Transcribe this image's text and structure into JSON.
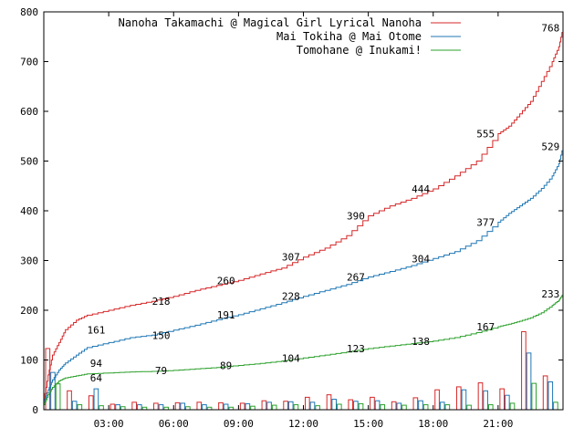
{
  "chart_data": {
    "type": "line",
    "title": "",
    "xlabel": "",
    "ylabel": "",
    "xlim": [
      0,
      24
    ],
    "ylim": [
      0,
      800
    ],
    "grid": false,
    "legend_position": "top-right",
    "x_ticks": [
      {
        "value": 3,
        "label": "03:00"
      },
      {
        "value": 6,
        "label": "06:00"
      },
      {
        "value": 9,
        "label": "09:00"
      },
      {
        "value": 12,
        "label": "12:00"
      },
      {
        "value": 15,
        "label": "15:00"
      },
      {
        "value": 18,
        "label": "18:00"
      },
      {
        "value": 21,
        "label": "21:00"
      }
    ],
    "y_ticks": [
      0,
      100,
      200,
      300,
      400,
      500,
      600,
      700,
      800
    ],
    "series": [
      {
        "name": "Nanoha Takamachi @ Magical Girl Lyrical Nanoha",
        "color": "#d62728",
        "x": [
          0,
          0.2,
          0.4,
          0.7,
          1,
          1.5,
          2,
          3,
          4,
          5,
          6,
          7,
          8,
          9,
          10,
          11,
          12,
          13,
          14,
          15,
          16,
          17,
          18,
          19,
          20,
          21,
          21.5,
          22,
          22.5,
          23,
          23.5,
          23.8,
          24
        ],
        "y": [
          20,
          70,
          110,
          135,
          161,
          180,
          190,
          200,
          210,
          218,
          228,
          240,
          250,
          260,
          273,
          285,
          307,
          325,
          350,
          390,
          410,
          425,
          444,
          470,
          500,
          555,
          570,
          595,
          620,
          660,
          700,
          730,
          768
        ]
      },
      {
        "name": "Mai Tokiha @ Mai Otome",
        "color": "#1f77b4",
        "x": [
          0,
          0.2,
          0.4,
          0.7,
          1,
          1.5,
          2,
          3,
          4,
          5,
          6,
          7,
          8,
          9,
          10,
          11,
          12,
          13,
          14,
          15,
          16,
          17,
          18,
          19,
          20,
          21,
          21.5,
          22,
          22.5,
          23,
          23.5,
          23.8,
          24
        ],
        "y": [
          15,
          40,
          60,
          80,
          94,
          110,
          125,
          135,
          145,
          150,
          160,
          170,
          181,
          191,
          203,
          215,
          228,
          240,
          252,
          267,
          278,
          290,
          304,
          318,
          340,
          377,
          395,
          410,
          425,
          445,
          470,
          495,
          529
        ]
      },
      {
        "name": "Tomohane @ Inukami!",
        "color": "#2ca02c",
        "x": [
          0,
          0.2,
          0.4,
          0.7,
          1,
          1.5,
          2,
          3,
          4,
          5,
          6,
          7,
          8,
          9,
          10,
          11,
          12,
          13,
          14,
          15,
          16,
          17,
          18,
          19,
          20,
          21,
          21.5,
          22,
          22.5,
          23,
          23.5,
          23.8,
          24
        ],
        "y": [
          10,
          30,
          45,
          58,
          64,
          68,
          72,
          74,
          76,
          77,
          79,
          82,
          85,
          89,
          93,
          98,
          104,
          110,
          116,
          123,
          128,
          133,
          138,
          145,
          155,
          167,
          172,
          178,
          185,
          195,
          210,
          220,
          233
        ]
      }
    ],
    "point_labels": [
      {
        "series": 0,
        "x": 2,
        "y": 161,
        "label": "161"
      },
      {
        "series": 0,
        "x": 5,
        "y": 218,
        "label": "218"
      },
      {
        "series": 0,
        "x": 8,
        "y": 260,
        "label": "260"
      },
      {
        "series": 0,
        "x": 11,
        "y": 307,
        "label": "307"
      },
      {
        "series": 0,
        "x": 14,
        "y": 390,
        "label": "390"
      },
      {
        "series": 0,
        "x": 17,
        "y": 444,
        "label": "444"
      },
      {
        "series": 0,
        "x": 20,
        "y": 555,
        "label": "555"
      },
      {
        "series": 0,
        "x": 23,
        "y": 768,
        "label": "768"
      },
      {
        "series": 1,
        "x": 2,
        "y": 94,
        "label": "94"
      },
      {
        "series": 1,
        "x": 5,
        "y": 150,
        "label": "150"
      },
      {
        "series": 1,
        "x": 8,
        "y": 191,
        "label": "191"
      },
      {
        "series": 1,
        "x": 11,
        "y": 228,
        "label": "228"
      },
      {
        "series": 1,
        "x": 14,
        "y": 267,
        "label": "267"
      },
      {
        "series": 1,
        "x": 17,
        "y": 304,
        "label": "304"
      },
      {
        "series": 1,
        "x": 20,
        "y": 377,
        "label": "377"
      },
      {
        "series": 1,
        "x": 23,
        "y": 529,
        "label": "529"
      },
      {
        "series": 2,
        "x": 2,
        "y": 64,
        "label": "64"
      },
      {
        "series": 2,
        "x": 5,
        "y": 79,
        "label": "79"
      },
      {
        "series": 2,
        "x": 8,
        "y": 89,
        "label": "89"
      },
      {
        "series": 2,
        "x": 11,
        "y": 104,
        "label": "104"
      },
      {
        "series": 2,
        "x": 14,
        "y": 123,
        "label": "123"
      },
      {
        "series": 2,
        "x": 17,
        "y": 138,
        "label": "138"
      },
      {
        "series": 2,
        "x": 20,
        "y": 167,
        "label": "167"
      },
      {
        "series": 2,
        "x": 23,
        "y": 233,
        "label": "233"
      }
    ],
    "hourly_bars": {
      "hours": [
        0,
        1,
        2,
        3,
        4,
        5,
        6,
        7,
        8,
        9,
        10,
        11,
        12,
        13,
        14,
        15,
        16,
        17,
        18,
        19,
        20,
        21,
        22,
        23
      ],
      "series": [
        {
          "color": "#d62728",
          "values": [
            123,
            38,
            28,
            11,
            15,
            13,
            14,
            15,
            14,
            13,
            18,
            17,
            25,
            30,
            20,
            25,
            16,
            24,
            40,
            46,
            54,
            42,
            157,
            68
          ]
        },
        {
          "color": "#1f77b4",
          "values": [
            75,
            17,
            42,
            10,
            10,
            10,
            13,
            10,
            11,
            12,
            15,
            16,
            15,
            21,
            17,
            18,
            13,
            18,
            15,
            40,
            38,
            29,
            114,
            56
          ]
        },
        {
          "color": "#2ca02c",
          "values": [
            52,
            10,
            8,
            6,
            5,
            5,
            6,
            5,
            5,
            7,
            9,
            10,
            8,
            11,
            12,
            10,
            9,
            10,
            10,
            9,
            10,
            13,
            53,
            15
          ]
        }
      ]
    }
  }
}
